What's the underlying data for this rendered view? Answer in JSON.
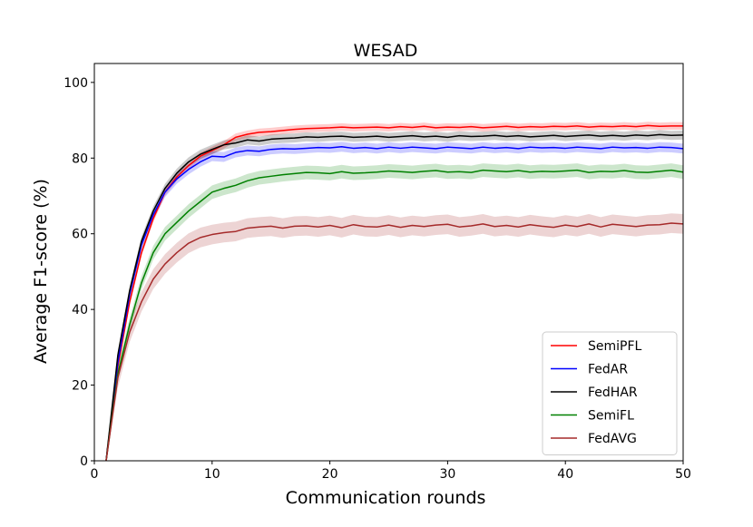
{
  "chart_data": {
    "type": "line",
    "title": "WESAD",
    "xlabel": "Communication rounds",
    "ylabel": "Average F1-score (%)",
    "xlim": [
      0,
      50
    ],
    "ylim": [
      0,
      105
    ],
    "xticks": [
      0,
      10,
      20,
      30,
      40,
      50
    ],
    "yticks": [
      0,
      20,
      40,
      60,
      80,
      100
    ],
    "grid": false,
    "legend_position": "lower-right",
    "x": [
      1,
      2,
      3,
      4,
      5,
      6,
      7,
      8,
      9,
      10,
      11,
      12,
      13,
      14,
      15,
      16,
      17,
      18,
      19,
      20,
      21,
      22,
      23,
      24,
      25,
      26,
      27,
      28,
      29,
      30,
      31,
      32,
      33,
      34,
      35,
      36,
      37,
      38,
      39,
      40,
      41,
      42,
      43,
      44,
      45,
      46,
      47,
      48,
      49,
      50
    ],
    "series": [
      {
        "name": "SemiPFL",
        "color": "#ff0000",
        "band": 1.0,
        "values": [
          0,
          25,
          42,
          55,
          64,
          71,
          75,
          78,
          80.5,
          82,
          83.5,
          85.5,
          86.3,
          86.8,
          87,
          87.3,
          87.6,
          87.8,
          87.9,
          88,
          88.2,
          88,
          88.1,
          88.2,
          88,
          88.3,
          88.1,
          88.4,
          88,
          88.2,
          88.1,
          88.3,
          88,
          88.2,
          88.4,
          88.1,
          88.3,
          88.2,
          88.4,
          88.3,
          88.5,
          88.2,
          88.4,
          88.3,
          88.5,
          88.3,
          88.6,
          88.4,
          88.5,
          88.5
        ]
      },
      {
        "name": "FedAR",
        "color": "#0000ff",
        "band": 1.3,
        "values": [
          0,
          26,
          44,
          57,
          65,
          71,
          74.5,
          77,
          79,
          80.5,
          80.3,
          81.5,
          82,
          81.8,
          82.3,
          82.5,
          82.4,
          82.6,
          82.8,
          82.7,
          83,
          82.6,
          82.8,
          82.5,
          82.9,
          82.6,
          82.9,
          82.7,
          82.5,
          82.9,
          82.7,
          82.5,
          82.9,
          82.6,
          82.8,
          82.5,
          82.9,
          82.7,
          82.8,
          82.6,
          82.9,
          82.7,
          82.5,
          82.9,
          82.7,
          82.8,
          82.6,
          82.9,
          82.8,
          82.5
        ]
      },
      {
        "name": "FedHAR",
        "color": "#000000",
        "band": 1.2,
        "values": [
          0,
          28,
          45,
          58,
          66,
          72,
          76,
          79,
          81,
          82.3,
          83.5,
          84,
          84.8,
          84.5,
          85,
          85.2,
          85.3,
          85.6,
          85.5,
          85.7,
          85.8,
          85.5,
          85.6,
          85.8,
          85.5,
          85.7,
          85.9,
          85.6,
          85.8,
          85.5,
          85.9,
          85.7,
          85.8,
          86,
          85.7,
          85.9,
          85.6,
          85.8,
          86,
          85.7,
          85.9,
          86.1,
          85.8,
          86,
          85.8,
          86.1,
          85.9,
          86.2,
          86,
          86.1
        ]
      },
      {
        "name": "SemiFL",
        "color": "#008000",
        "band": 1.8,
        "values": [
          0,
          23,
          36,
          47,
          55,
          60,
          63,
          66,
          68.5,
          71,
          72,
          72.8,
          74,
          74.8,
          75.2,
          75.6,
          75.9,
          76.2,
          76.1,
          75.9,
          76.4,
          76,
          76.1,
          76.3,
          76.6,
          76.4,
          76.2,
          76.5,
          76.7,
          76.3,
          76.4,
          76.2,
          76.8,
          76.6,
          76.4,
          76.7,
          76.3,
          76.5,
          76.4,
          76.6,
          76.8,
          76.2,
          76.5,
          76.4,
          76.7,
          76.3,
          76.2,
          76.5,
          76.8,
          76.3
        ]
      },
      {
        "name": "FedAVG",
        "color": "#a52a2a",
        "band": 2.6,
        "values": [
          0,
          22,
          34,
          42,
          48,
          52,
          55,
          57.5,
          59,
          59.8,
          60.3,
          60.6,
          61.5,
          61.8,
          62,
          61.5,
          62,
          62.1,
          61.8,
          62.2,
          61.6,
          62.4,
          61.9,
          61.8,
          62.3,
          61.7,
          62.2,
          61.9,
          62.3,
          62.5,
          61.8,
          62.1,
          62.6,
          61.9,
          62.2,
          61.8,
          62.4,
          62,
          61.7,
          62.3,
          61.9,
          62.6,
          61.8,
          62.5,
          62.2,
          61.9,
          62.3,
          62.4,
          62.8,
          62.6
        ]
      }
    ]
  }
}
